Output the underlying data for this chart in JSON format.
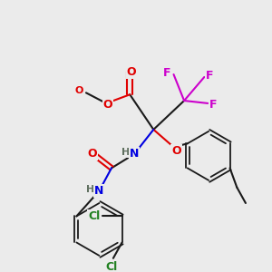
{
  "bg_color": "#ebebeb",
  "bond_color": "#1a1a1a",
  "colors": {
    "O": "#e00000",
    "N": "#0000e0",
    "F": "#cc00cc",
    "Cl": "#208020",
    "C": "#1a1a1a",
    "H": "#607060"
  },
  "fig_size": [
    3.0,
    3.0
  ],
  "dpi": 100
}
